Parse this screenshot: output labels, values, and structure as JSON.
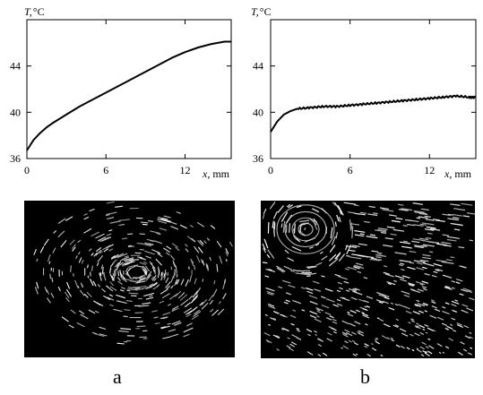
{
  "chart_data": [
    {
      "type": "line",
      "ylabel": "T,",
      "yunit": "°C",
      "xlabel": "x,",
      "xunit": "mm",
      "xlim": [
        0,
        15.5
      ],
      "ylim": [
        36,
        48
      ],
      "xticks": [
        0,
        6,
        12
      ],
      "yticks": [
        36,
        40,
        44
      ],
      "grid": false,
      "series": [
        {
          "x": [
            0,
            0.5,
            1,
            1.5,
            2,
            3,
            4,
            5,
            6,
            7,
            8,
            9,
            10,
            11,
            12,
            13,
            14,
            15,
            15.5
          ],
          "y": [
            36.7,
            37.6,
            38.2,
            38.7,
            39.1,
            39.8,
            40.5,
            41.1,
            41.7,
            42.3,
            42.9,
            43.5,
            44.1,
            44.7,
            45.2,
            45.6,
            45.9,
            46.1,
            46.1
          ]
        }
      ]
    },
    {
      "type": "line",
      "ylabel": "T,",
      "yunit": "°C",
      "xlabel": "x,",
      "xunit": "mm",
      "xlim": [
        0,
        15.5
      ],
      "ylim": [
        36,
        48
      ],
      "xticks": [
        0,
        6,
        12
      ],
      "yticks": [
        36,
        40,
        44
      ],
      "grid": false,
      "series": [
        {
          "x": [
            0,
            0.5,
            1,
            1.5,
            2,
            3,
            4,
            5,
            6,
            7,
            8,
            9,
            10,
            11,
            12,
            13,
            14,
            15,
            15.5
          ],
          "y": [
            38.3,
            39.2,
            39.8,
            40.1,
            40.3,
            40.4,
            40.5,
            40.5,
            40.6,
            40.7,
            40.8,
            40.9,
            41.0,
            41.1,
            41.2,
            41.3,
            41.4,
            41.3,
            41.3
          ]
        }
      ]
    }
  ],
  "panels": [
    {
      "label": "a"
    },
    {
      "label": "b"
    }
  ]
}
